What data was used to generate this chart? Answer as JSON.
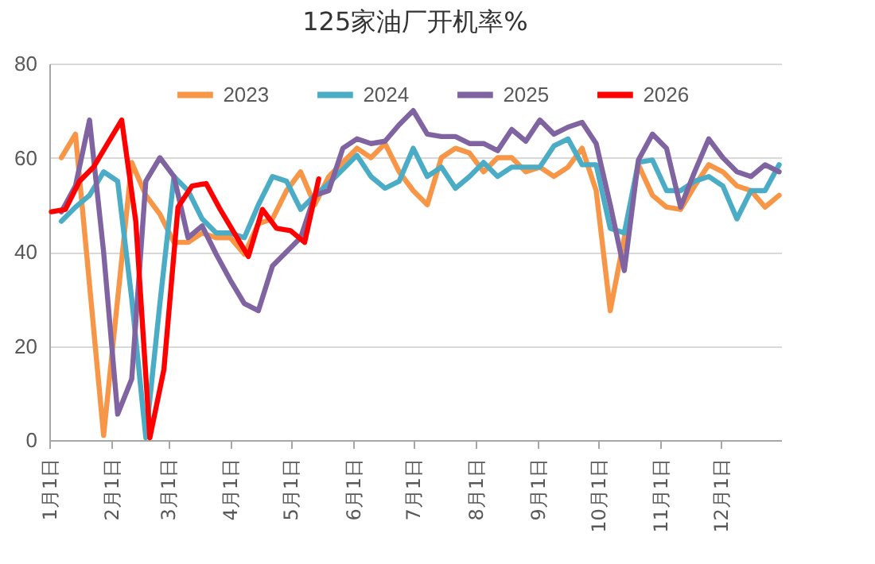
{
  "chart_data": {
    "type": "line",
    "title": "125家油厂开机率%",
    "x": [
      "--01-07",
      "--01-14",
      "--01-21",
      "--01-28",
      "--02-04",
      "--02-11",
      "--02-18",
      "--02-25",
      "--03-04",
      "--03-11",
      "--03-18",
      "--03-25",
      "--04-01",
      "--04-08",
      "--04-15",
      "--04-22",
      "--04-29",
      "--05-06",
      "--05-13",
      "--05-20",
      "--05-27",
      "--06-03",
      "--06-10",
      "--06-17",
      "--06-24",
      "--07-01",
      "--07-08",
      "--07-15",
      "--07-22",
      "--07-29",
      "--08-05",
      "--08-12",
      "--08-19",
      "--08-26",
      "--09-02",
      "--09-09",
      "--09-16",
      "--09-23",
      "--09-30",
      "--10-07",
      "--10-14",
      "--10-21",
      "--10-28",
      "--11-04",
      "--11-11",
      "--11-18",
      "--11-25",
      "--12-02",
      "--12-09",
      "--12-16",
      "--12-23",
      "--12-30"
    ],
    "series": [
      {
        "name": "2023",
        "color": "#f79646",
        "values": [
          60,
          65,
          33,
          1,
          30,
          59,
          52,
          48,
          42,
          42,
          44,
          43,
          43,
          39.5,
          46,
          47,
          53,
          57,
          50,
          56,
          59,
          62,
          60,
          63,
          57,
          53,
          50,
          60,
          62,
          61,
          57,
          60,
          60,
          57,
          58,
          56,
          58,
          62,
          53,
          27.5,
          43,
          58.5,
          52,
          49.5,
          49,
          54,
          58.5,
          57,
          54,
          53,
          49.5,
          52
        ]
      },
      {
        "name": "2024",
        "color": "#4bacc6",
        "values": [
          46.5,
          49.5,
          52,
          57,
          55,
          30,
          0.5,
          29,
          56,
          53,
          47,
          44,
          44,
          43,
          50,
          56,
          55,
          49,
          52,
          54.5,
          57.5,
          60.5,
          56,
          53.5,
          55,
          62,
          56,
          58,
          53.5,
          56,
          59,
          56,
          58,
          58,
          58,
          62.5,
          64,
          58.5,
          58.5,
          45,
          44,
          59,
          59.5,
          53,
          53,
          55,
          56,
          54,
          47,
          53,
          53,
          58.5
        ]
      },
      {
        "name": "2025",
        "color": "#8064a2",
        "values": [
          48.5,
          54,
          68,
          40,
          5.5,
          13,
          55,
          60,
          56,
          43,
          45.5,
          39.5,
          34,
          29,
          27.5,
          37,
          40,
          43,
          52,
          53,
          62,
          64,
          63,
          63.5,
          67,
          70,
          65,
          64.5,
          64.5,
          63,
          63,
          61.5,
          66,
          63.5,
          68,
          65,
          66.5,
          67.5,
          63,
          50,
          36,
          59.5,
          65,
          62,
          49.5,
          57,
          64,
          60,
          57,
          56,
          58.5,
          57
        ]
      },
      {
        "name": "2026",
        "color": "#ff0000",
        "x": [
          "--01-02",
          "--01-09",
          "--01-16",
          "--01-23",
          "--01-30",
          "--02-06",
          "--02-13",
          "--02-20",
          "--02-27",
          "--03-06",
          "--03-13",
          "--03-20",
          "--03-27",
          "--04-03",
          "--04-10",
          "--04-17",
          "--04-24",
          "--05-01",
          "--05-08",
          "--05-15"
        ],
        "values": [
          48.5,
          49,
          55,
          58,
          63,
          68,
          46.5,
          0.5,
          15,
          49.5,
          54,
          54.5,
          49,
          44,
          39,
          49,
          45,
          44.5,
          42,
          55.5
        ]
      }
    ],
    "xlim": [
      "--01-01",
      "--12-31"
    ],
    "xticks": [
      {
        "value": "--01-01",
        "label": "1月1日"
      },
      {
        "value": "--02-01",
        "label": "2月1日"
      },
      {
        "value": "--03-01",
        "label": "3月1日"
      },
      {
        "value": "--04-01",
        "label": "4月1日"
      },
      {
        "value": "--05-01",
        "label": "5月1日"
      },
      {
        "value": "--06-01",
        "label": "6月1日"
      },
      {
        "value": "--07-01",
        "label": "7月1日"
      },
      {
        "value": "--08-01",
        "label": "8月1日"
      },
      {
        "value": "--09-01",
        "label": "9月1日"
      },
      {
        "value": "--10-01",
        "label": "10月1日"
      },
      {
        "value": "--11-01",
        "label": "11月1日"
      },
      {
        "value": "--12-01",
        "label": "12月1日"
      }
    ],
    "ylim": [
      0,
      80
    ],
    "yticks": [
      0,
      20,
      40,
      60,
      80
    ],
    "grid": "y",
    "legend": "top",
    "marker": "none",
    "line_style": "solid"
  }
}
